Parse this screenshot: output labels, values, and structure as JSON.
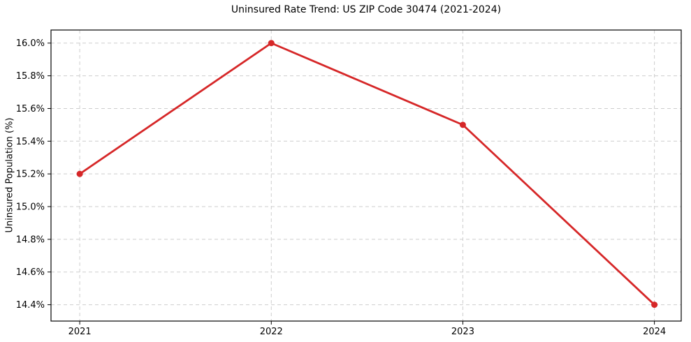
{
  "chart_data": {
    "type": "line",
    "title": "Uninsured Rate Trend: US ZIP Code 30474 (2021-2024)",
    "xlabel": "",
    "ylabel": "Uninsured Population (%)",
    "x": [
      2021,
      2022,
      2023,
      2024
    ],
    "values": [
      15.2,
      16.0,
      15.5,
      14.4
    ],
    "x_ticks": [
      2021,
      2022,
      2023,
      2024
    ],
    "x_tick_labels": [
      "2021",
      "2022",
      "2023",
      "2024"
    ],
    "y_ticks": [
      14.4,
      14.6,
      14.8,
      15.0,
      15.2,
      15.4,
      15.6,
      15.8,
      16.0
    ],
    "y_tick_labels": [
      "14.4%",
      "14.6%",
      "14.8%",
      "15.0%",
      "15.2%",
      "15.4%",
      "15.6%",
      "15.8%",
      "16.0%"
    ],
    "xlim": [
      2020.85,
      2024.14
    ],
    "ylim": [
      14.3,
      16.08
    ],
    "grid": true,
    "legend": "none",
    "line_color": "#d62728",
    "grid_color": "#cdcdcd",
    "spine_color": "#000000",
    "text_color": "#000000",
    "background_color": "#ffffff"
  }
}
